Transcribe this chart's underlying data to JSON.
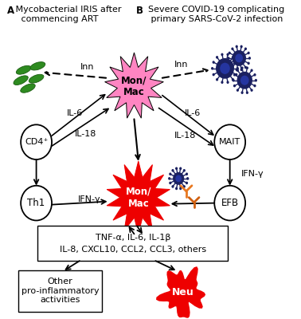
{
  "title_A_bold": "A",
  "title_A_rest": " Mycobacterial IRIS after\n   commencing ART",
  "title_B_bold": "B",
  "title_B_rest": "  Severe COVID-19 complicating\n   primary SARS-CoV-2 infection",
  "center_mon_mac_color": "#FF85C2",
  "lower_mon_mac_color": "#EE0000",
  "neu_color": "#EE0000",
  "mycobacteria_color": "#2E8B20",
  "virus_color": "#1a2060",
  "virus_inner_color": "#2535a0",
  "background": "#FFFFFF",
  "il6_left": "IL-6",
  "il6_right": "IL-6",
  "il18_left": "IL-18",
  "il18_right": "IL-18",
  "inn_left": "Inn",
  "inn_right": "Inn",
  "ifn_gamma_left": "IFN-γ",
  "ifn_gamma_right": "IFN-γ",
  "cytokine_line1": "TNF-α, IL-6, IL-1β",
  "cytokine_line2": "IL-8, CXCL10, CCL2, CCL3, others",
  "other_box_text": "Other\npro-inflammatory\nactivities",
  "neu_label": "Neu",
  "cd4_label": "CD4⁺",
  "th1_label": "Th1",
  "mait_label": "MAIT",
  "efb_label": "EFB",
  "mon_mac_top": "Mon/\nMac",
  "mon_mac_bot": "Mon/\nMac"
}
